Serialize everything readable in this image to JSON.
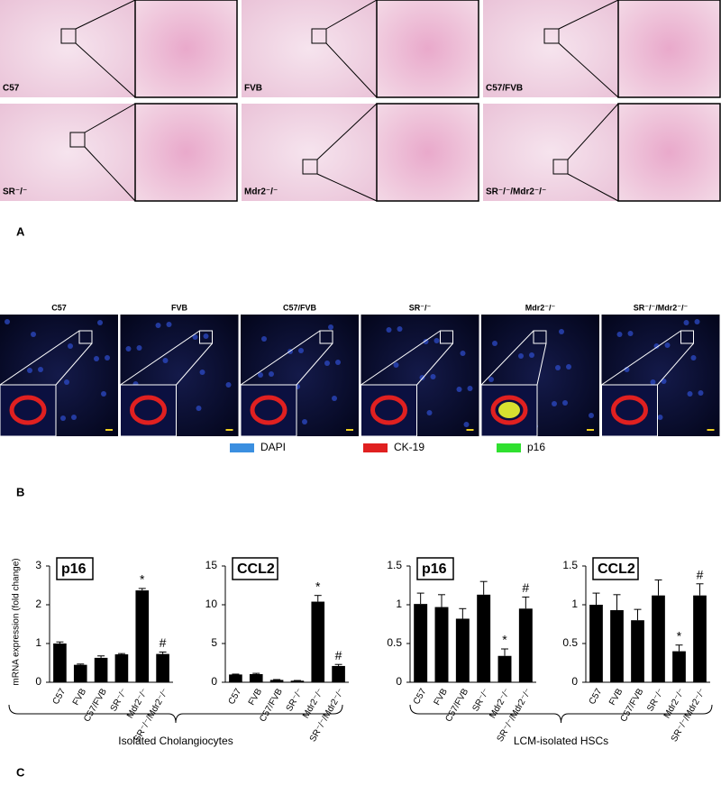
{
  "panel_a": {
    "label": "A",
    "tiles": [
      "C57",
      "FVB",
      "C57/FVB",
      "SR⁻/⁻",
      "Mdr2⁻/⁻",
      "SR⁻/⁻/Mdr2⁻/⁻"
    ]
  },
  "panel_b": {
    "label": "B",
    "images": [
      "C57",
      "FVB",
      "C57/FVB",
      "SR⁻/⁻",
      "Mdr2⁻/⁻",
      "SR⁻/⁻/Mdr2⁻/⁻"
    ],
    "legend": [
      {
        "name": "DAPI",
        "color": "#3b8fe0"
      },
      {
        "name": "CK-19",
        "color": "#e02020"
      },
      {
        "name": "p16",
        "color": "#30e030"
      }
    ]
  },
  "panel_c": {
    "label": "C",
    "ylabel": "mRNA expression (fold change)",
    "groups": [
      "Isolated Cholangiocytes",
      "LCM-isolated HSCs"
    ]
  },
  "chart_data": [
    {
      "type": "bar",
      "title": "p16",
      "categories": [
        "C57",
        "FVB",
        "C57/FVB",
        "SR⁻/⁻",
        "Mdr2⁻/⁻",
        "SR⁻/⁻/Mdr2⁻/⁻"
      ],
      "values": [
        1.0,
        0.45,
        0.63,
        0.72,
        2.37,
        0.73
      ],
      "errors": [
        0.04,
        0.02,
        0.05,
        0.02,
        0.05,
        0.05
      ],
      "annotations": [
        null,
        null,
        null,
        null,
        "*",
        "#"
      ],
      "color": "#000000",
      "ylim": [
        0,
        3
      ],
      "yticks": [
        0,
        1,
        2,
        3
      ]
    },
    {
      "type": "bar",
      "title": "CCL2",
      "categories": [
        "C57",
        "FVB",
        "C57/FVB",
        "SR⁻/⁻",
        "Mdr2⁻/⁻",
        "SR⁻/⁻/Mdr2⁻/⁻"
      ],
      "values": [
        1.0,
        1.05,
        0.3,
        0.2,
        10.4,
        2.1
      ],
      "errors": [
        0.05,
        0.1,
        0.05,
        0.03,
        0.8,
        0.2
      ],
      "annotations": [
        null,
        null,
        null,
        null,
        "*",
        "#"
      ],
      "color": "#000000",
      "ylim": [
        0,
        15
      ],
      "yticks": [
        0,
        5,
        10,
        15
      ]
    },
    {
      "type": "bar",
      "title": "p16",
      "categories": [
        "C57",
        "FVB",
        "C57/FVB",
        "SR⁻/⁻",
        "Mdr2⁻/⁻",
        "SR⁻/⁻/Mdr2⁻/⁻"
      ],
      "values": [
        1.01,
        0.97,
        0.82,
        1.13,
        0.34,
        0.95
      ],
      "errors": [
        0.14,
        0.16,
        0.13,
        0.17,
        0.09,
        0.15
      ],
      "annotations": [
        null,
        null,
        null,
        null,
        "*",
        "#"
      ],
      "color": "#000000",
      "ylim": [
        0,
        1.5
      ],
      "yticks": [
        0,
        0.5,
        1,
        1.5
      ]
    },
    {
      "type": "bar",
      "title": "CCL2",
      "categories": [
        "C57",
        "FVB",
        "C57/FVB",
        "SR⁻/⁻",
        "Mdr2⁻/⁻",
        "SR⁻/⁻/Mdr2⁻/⁻"
      ],
      "values": [
        1.0,
        0.93,
        0.8,
        1.12,
        0.4,
        1.12
      ],
      "errors": [
        0.15,
        0.2,
        0.14,
        0.2,
        0.08,
        0.15
      ],
      "annotations": [
        null,
        null,
        null,
        null,
        "*",
        "#"
      ],
      "color": "#000000",
      "ylim": [
        0,
        1.5
      ],
      "yticks": [
        0,
        0.5,
        1,
        1.5
      ]
    }
  ]
}
